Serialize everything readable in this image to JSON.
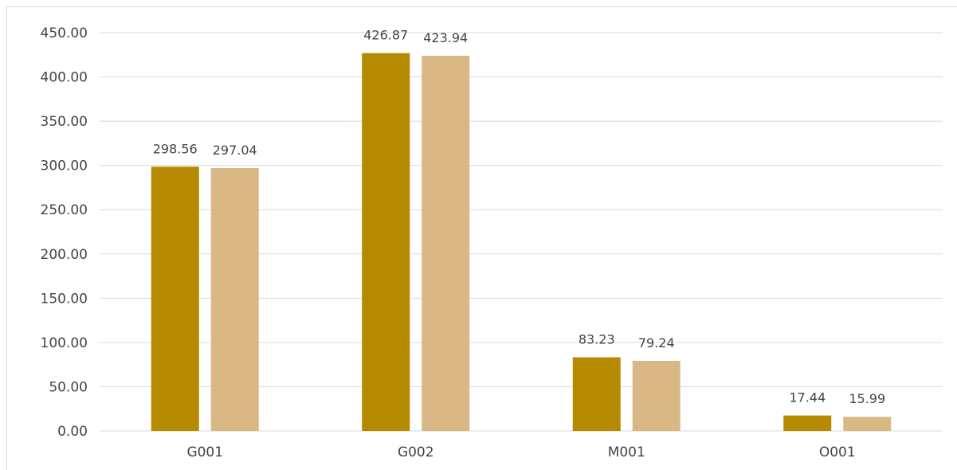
{
  "chart_data": {
    "type": "bar",
    "categories": [
      "G001",
      "G002",
      "M001",
      "O001"
    ],
    "series": [
      {
        "values": [
          298.56,
          426.87,
          83.23,
          17.44
        ],
        "color": "#b58900"
      },
      {
        "values": [
          297.04,
          423.94,
          79.24,
          15.99
        ],
        "color": "#d9b886"
      }
    ],
    "ylim": [
      0,
      450
    ],
    "yticks": [
      "0.00",
      "50.00",
      "100.00",
      "150.00",
      "200.00",
      "250.00",
      "300.00",
      "350.00",
      "400.00",
      "450.00"
    ],
    "data_labels": [
      [
        "298.56",
        "426.87",
        "83.23",
        "17.44"
      ],
      [
        "297.04",
        "423.94",
        "79.24",
        "15.99"
      ]
    ],
    "grid": true,
    "legend": "none",
    "title": "",
    "xlabel": "",
    "ylabel": ""
  }
}
